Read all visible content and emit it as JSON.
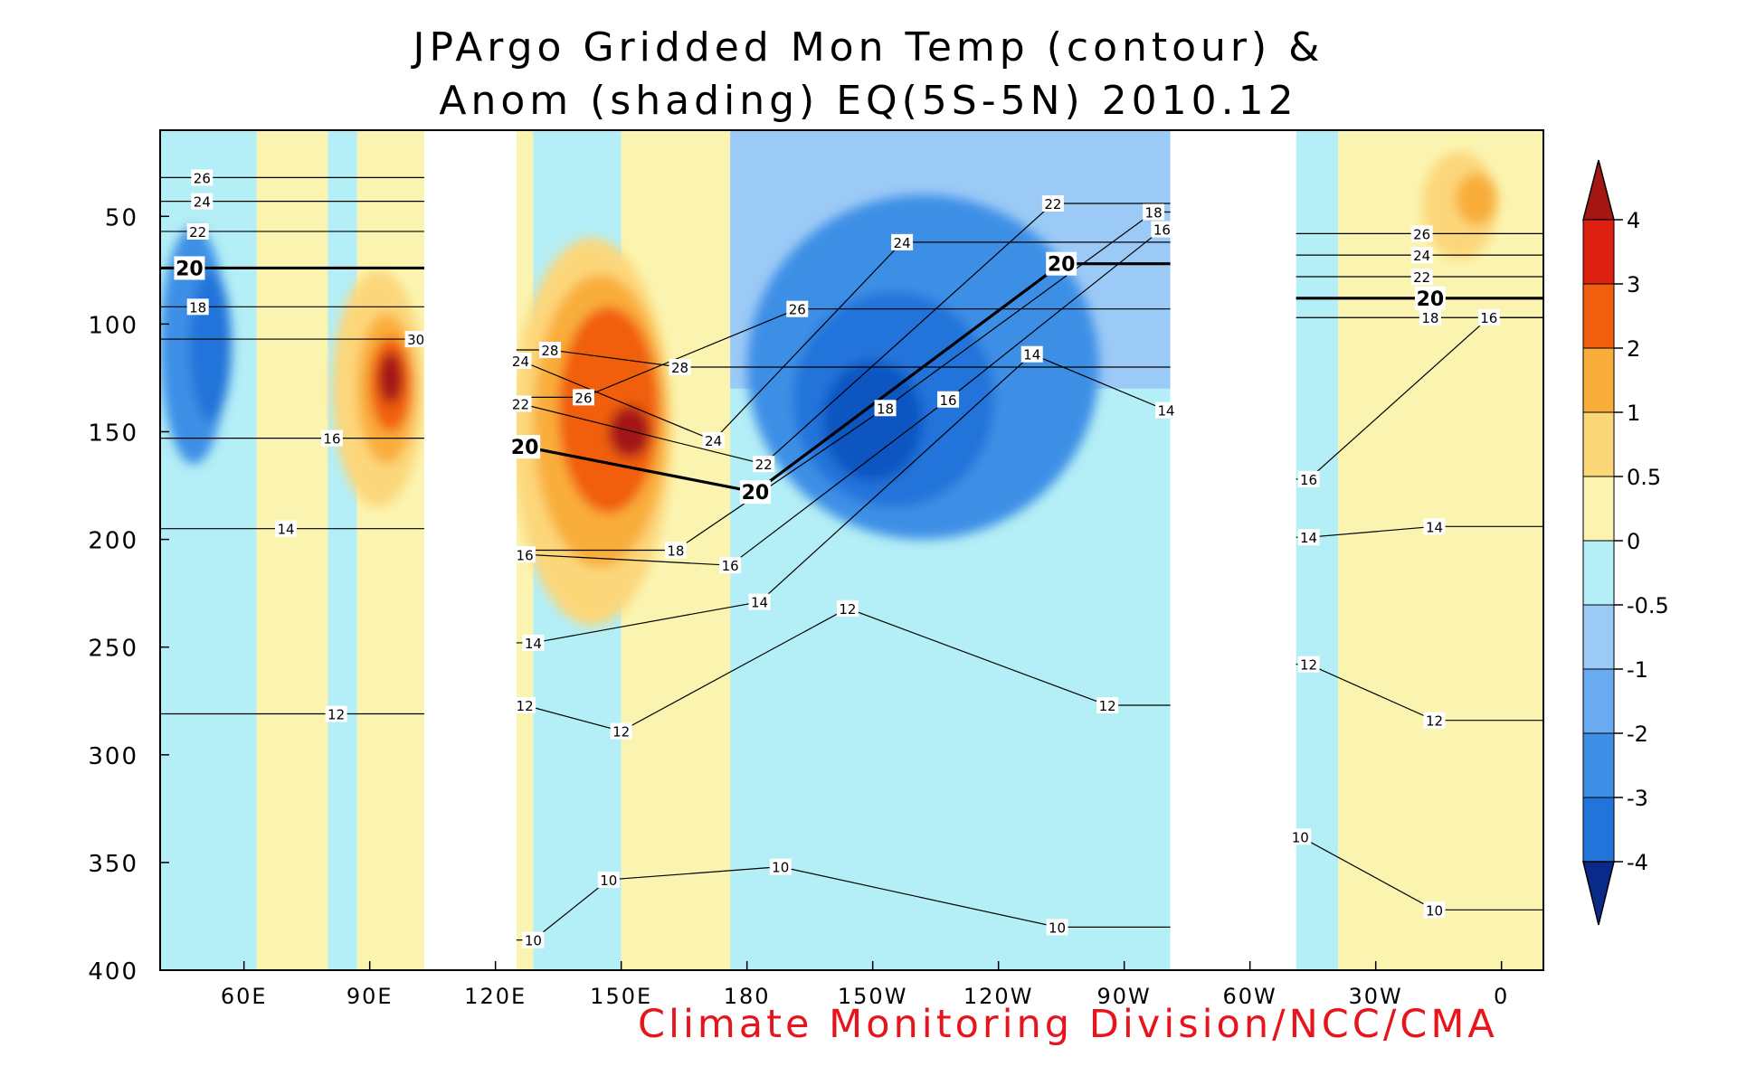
{
  "chart_data": {
    "type": "heatmap",
    "title_line1": "JPArgo Gridded Mon Temp (contour) &",
    "title_line2": "Anom (shading) EQ(5S-5N) 2010.12",
    "xlabel": "",
    "ylabel": "",
    "x_range_deg_east": [
      40,
      370
    ],
    "ylim": [
      10,
      400
    ],
    "y_inverted": true,
    "x_ticks": [
      {
        "lon": 60,
        "label": "60E"
      },
      {
        "lon": 90,
        "label": "90E"
      },
      {
        "lon": 120,
        "label": "120E"
      },
      {
        "lon": 150,
        "label": "150E"
      },
      {
        "lon": 180,
        "label": "180"
      },
      {
        "lon": 210,
        "label": "150W"
      },
      {
        "lon": 240,
        "label": "120W"
      },
      {
        "lon": 270,
        "label": "90W"
      },
      {
        "lon": 300,
        "label": "60W"
      },
      {
        "lon": 330,
        "label": "30W"
      },
      {
        "lon": 360,
        "label": "0"
      }
    ],
    "y_ticks": [
      {
        "depth": 50,
        "label": "50"
      },
      {
        "depth": 100,
        "label": "100"
      },
      {
        "depth": 150,
        "label": "150"
      },
      {
        "depth": 200,
        "label": "200"
      },
      {
        "depth": 250,
        "label": "250"
      },
      {
        "depth": 300,
        "label": "300"
      },
      {
        "depth": 350,
        "label": "350"
      },
      {
        "depth": 400,
        "label": "400"
      }
    ],
    "shading_levels": [
      "-4",
      "-3",
      "-2",
      "-1",
      "-0.5",
      "0",
      "0.5",
      "1",
      "2",
      "3",
      "4"
    ],
    "shading_colors": [
      "#0a2a8a",
      "#1157c2",
      "#2273da",
      "#3d8fe6",
      "#6aaaf0",
      "#9ccaf6",
      "#b4eef6",
      "#fbf4b0",
      "#fcd77a",
      "#f9ad3a",
      "#f15f0e",
      "#de2010",
      "#a41612"
    ],
    "land_gaps": [
      {
        "from": 103,
        "to": 125
      },
      {
        "from": 281,
        "to": 311
      }
    ],
    "anomaly_blobs": [
      {
        "lon": 48,
        "depth": 110,
        "rx": 8,
        "ry": 55,
        "level": -1
      },
      {
        "lon": 52,
        "depth": 110,
        "rx": 5,
        "ry": 35,
        "level": -2
      },
      {
        "lon": 92,
        "depth": 130,
        "rx": 11,
        "ry": 55,
        "level": 1
      },
      {
        "lon": 94,
        "depth": 130,
        "rx": 7,
        "ry": 35,
        "level": 2
      },
      {
        "lon": 95,
        "depth": 128,
        "rx": 5,
        "ry": 22,
        "level": 3
      },
      {
        "lon": 95,
        "depth": 125,
        "rx": 3,
        "ry": 12,
        "level": 4
      },
      {
        "lon": 143,
        "depth": 150,
        "rx": 19,
        "ry": 90,
        "level": 1
      },
      {
        "lon": 145,
        "depth": 145,
        "rx": 16,
        "ry": 68,
        "level": 2
      },
      {
        "lon": 147,
        "depth": 140,
        "rx": 12,
        "ry": 48,
        "level": 3
      },
      {
        "lon": 152,
        "depth": 150,
        "rx": 5,
        "ry": 12,
        "level": 4
      },
      {
        "lon": 222,
        "depth": 120,
        "rx": 42,
        "ry": 80,
        "level": -1
      },
      {
        "lon": 215,
        "depth": 135,
        "rx": 24,
        "ry": 50,
        "level": -2
      },
      {
        "lon": 210,
        "depth": 145,
        "rx": 12,
        "ry": 28,
        "level": -3
      },
      {
        "lon": 350,
        "depth": 45,
        "rx": 9,
        "ry": 25,
        "level": 1
      },
      {
        "lon": 354,
        "depth": 42,
        "rx": 5,
        "ry": 12,
        "level": 2
      }
    ],
    "contour_labels": [
      {
        "value": "26",
        "lon": 50,
        "depth": 32,
        "bold": false
      },
      {
        "value": "24",
        "lon": 50,
        "depth": 43,
        "bold": false
      },
      {
        "value": "22",
        "lon": 49,
        "depth": 57,
        "bold": false
      },
      {
        "value": "20",
        "lon": 47,
        "depth": 74,
        "bold": true
      },
      {
        "value": "18",
        "lon": 49,
        "depth": 92,
        "bold": false
      },
      {
        "value": "16",
        "lon": 81,
        "depth": 153,
        "bold": false
      },
      {
        "value": "14",
        "lon": 70,
        "depth": 195,
        "bold": false
      },
      {
        "value": "12",
        "lon": 82,
        "depth": 281,
        "bold": false
      },
      {
        "value": "30",
        "lon": 101,
        "depth": 107,
        "bold": false
      },
      {
        "value": "24",
        "lon": 126,
        "depth": 117,
        "bold": false
      },
      {
        "value": "28",
        "lon": 133,
        "depth": 112,
        "bold": false
      },
      {
        "value": "22",
        "lon": 126,
        "depth": 137,
        "bold": false
      },
      {
        "value": "26",
        "lon": 141,
        "depth": 134,
        "bold": false
      },
      {
        "value": "28",
        "lon": 164,
        "depth": 120,
        "bold": false
      },
      {
        "value": "20",
        "lon": 127,
        "depth": 157,
        "bold": true
      },
      {
        "value": "24",
        "lon": 172,
        "depth": 154,
        "bold": false
      },
      {
        "value": "22",
        "lon": 184,
        "depth": 165,
        "bold": false
      },
      {
        "value": "20",
        "lon": 182,
        "depth": 178,
        "bold": true
      },
      {
        "value": "16",
        "lon": 127,
        "depth": 207,
        "bold": false
      },
      {
        "value": "18",
        "lon": 163,
        "depth": 205,
        "bold": false
      },
      {
        "value": "16",
        "lon": 176,
        "depth": 212,
        "bold": false
      },
      {
        "value": "14",
        "lon": 183,
        "depth": 229,
        "bold": false
      },
      {
        "value": "14",
        "lon": 129,
        "depth": 248,
        "bold": false
      },
      {
        "value": "12",
        "lon": 127,
        "depth": 277,
        "bold": false
      },
      {
        "value": "12",
        "lon": 150,
        "depth": 289,
        "bold": false
      },
      {
        "value": "12",
        "lon": 204,
        "depth": 232,
        "bold": false
      },
      {
        "value": "10",
        "lon": 129,
        "depth": 386,
        "bold": false
      },
      {
        "value": "10",
        "lon": 147,
        "depth": 358,
        "bold": false
      },
      {
        "value": "10",
        "lon": 188,
        "depth": 352,
        "bold": false
      },
      {
        "value": "10",
        "lon": 254,
        "depth": 380,
        "bold": false
      },
      {
        "value": "26",
        "lon": 192,
        "depth": 93,
        "bold": false
      },
      {
        "value": "24",
        "lon": 217,
        "depth": 62,
        "bold": false
      },
      {
        "value": "18",
        "lon": 213,
        "depth": 139,
        "bold": false
      },
      {
        "value": "16",
        "lon": 228,
        "depth": 135,
        "bold": false
      },
      {
        "value": "14",
        "lon": 248,
        "depth": 114,
        "bold": false
      },
      {
        "value": "22",
        "lon": 253,
        "depth": 44,
        "bold": false
      },
      {
        "value": "20",
        "lon": 255,
        "depth": 72,
        "bold": true
      },
      {
        "value": "18",
        "lon": 277,
        "depth": 48,
        "bold": false
      },
      {
        "value": "16",
        "lon": 279,
        "depth": 56,
        "bold": false
      },
      {
        "value": "14",
        "lon": 280,
        "depth": 140,
        "bold": false
      },
      {
        "value": "12",
        "lon": 266,
        "depth": 277,
        "bold": false
      },
      {
        "value": "26",
        "lon": 341,
        "depth": 58,
        "bold": false
      },
      {
        "value": "24",
        "lon": 341,
        "depth": 68,
        "bold": false
      },
      {
        "value": "22",
        "lon": 341,
        "depth": 78,
        "bold": false
      },
      {
        "value": "20",
        "lon": 343,
        "depth": 88,
        "bold": true
      },
      {
        "value": "18",
        "lon": 343,
        "depth": 97,
        "bold": false
      },
      {
        "value": "16",
        "lon": 357,
        "depth": 97,
        "bold": false
      },
      {
        "value": "16",
        "lon": 314,
        "depth": 172,
        "bold": false
      },
      {
        "value": "14",
        "lon": 314,
        "depth": 199,
        "bold": false
      },
      {
        "value": "14",
        "lon": 344,
        "depth": 194,
        "bold": false
      },
      {
        "value": "12",
        "lon": 314,
        "depth": 258,
        "bold": false
      },
      {
        "value": "12",
        "lon": 344,
        "depth": 284,
        "bold": false
      },
      {
        "value": "10",
        "lon": 312,
        "depth": 338,
        "bold": false
      },
      {
        "value": "10",
        "lon": 344,
        "depth": 372,
        "bold": false
      }
    ],
    "credit": "Climate Monitoring Division/NCC/CMA"
  }
}
